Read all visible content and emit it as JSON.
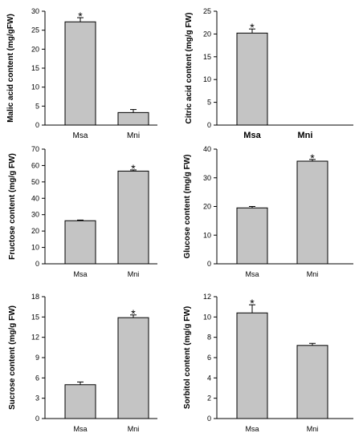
{
  "chart_data": [
    {
      "type": "bar",
      "categories": [
        "Msa",
        "Mni"
      ],
      "values": [
        27.2,
        3.3
      ],
      "errors": [
        1.1,
        0.8
      ],
      "significant": [
        true,
        false
      ],
      "ylabel": "Malic acid content (mg/gFW)",
      "ylim": [
        0,
        30
      ],
      "yticks": [
        0,
        5,
        10,
        15,
        20,
        25,
        30
      ],
      "bar_color": "#c4c4c4"
    },
    {
      "type": "bar",
      "categories": [
        "Msa",
        "Mni"
      ],
      "values": [
        20.2,
        0
      ],
      "errors": [
        0.9,
        0
      ],
      "significant": [
        true,
        false
      ],
      "ylabel": "Citric acid content (mg/g FW)",
      "ylim": [
        0,
        25
      ],
      "yticks": [
        0,
        5,
        10,
        15,
        20,
        25
      ],
      "bar_color": "#c4c4c4"
    },
    {
      "type": "bar",
      "categories": [
        "Msa",
        "Mni"
      ],
      "values": [
        26.3,
        56.6
      ],
      "errors": [
        0.4,
        0.7
      ],
      "significant": [
        false,
        true
      ],
      "ylabel": "Fructose content (mg/g FW)",
      "ylim": [
        0,
        70
      ],
      "yticks": [
        0,
        10,
        20,
        30,
        40,
        50,
        60,
        70
      ],
      "bar_color": "#c4c4c4"
    },
    {
      "type": "bar",
      "categories": [
        "Msa",
        "Mni"
      ],
      "values": [
        19.5,
        35.8
      ],
      "errors": [
        0.5,
        0.6
      ],
      "significant": [
        false,
        true
      ],
      "ylabel": "Glucose content (mg/g FW)",
      "ylim": [
        0,
        40
      ],
      "yticks": [
        0,
        10,
        20,
        30,
        40
      ],
      "bar_color": "#c4c4c4"
    },
    {
      "type": "bar",
      "categories": [
        "Msa",
        "Mni"
      ],
      "values": [
        5.0,
        14.9
      ],
      "errors": [
        0.4,
        0.4
      ],
      "significant": [
        false,
        true
      ],
      "ylabel": "Sucrose content (mg/g FW)",
      "ylim": [
        0,
        18
      ],
      "yticks": [
        0,
        3,
        6,
        9,
        12,
        15,
        18
      ],
      "bar_color": "#c4c4c4"
    },
    {
      "type": "bar",
      "categories": [
        "Msa",
        "Mni"
      ],
      "values": [
        10.4,
        7.2
      ],
      "errors": [
        0.8,
        0.2
      ],
      "significant": [
        true,
        false
      ],
      "ylabel": "Sorbitol content (mg/g FW)",
      "ylim": [
        0,
        12
      ],
      "yticks": [
        0,
        2,
        4,
        6,
        8,
        10,
        12
      ],
      "bar_color": "#c4c4c4"
    }
  ],
  "significance_marker": "*"
}
